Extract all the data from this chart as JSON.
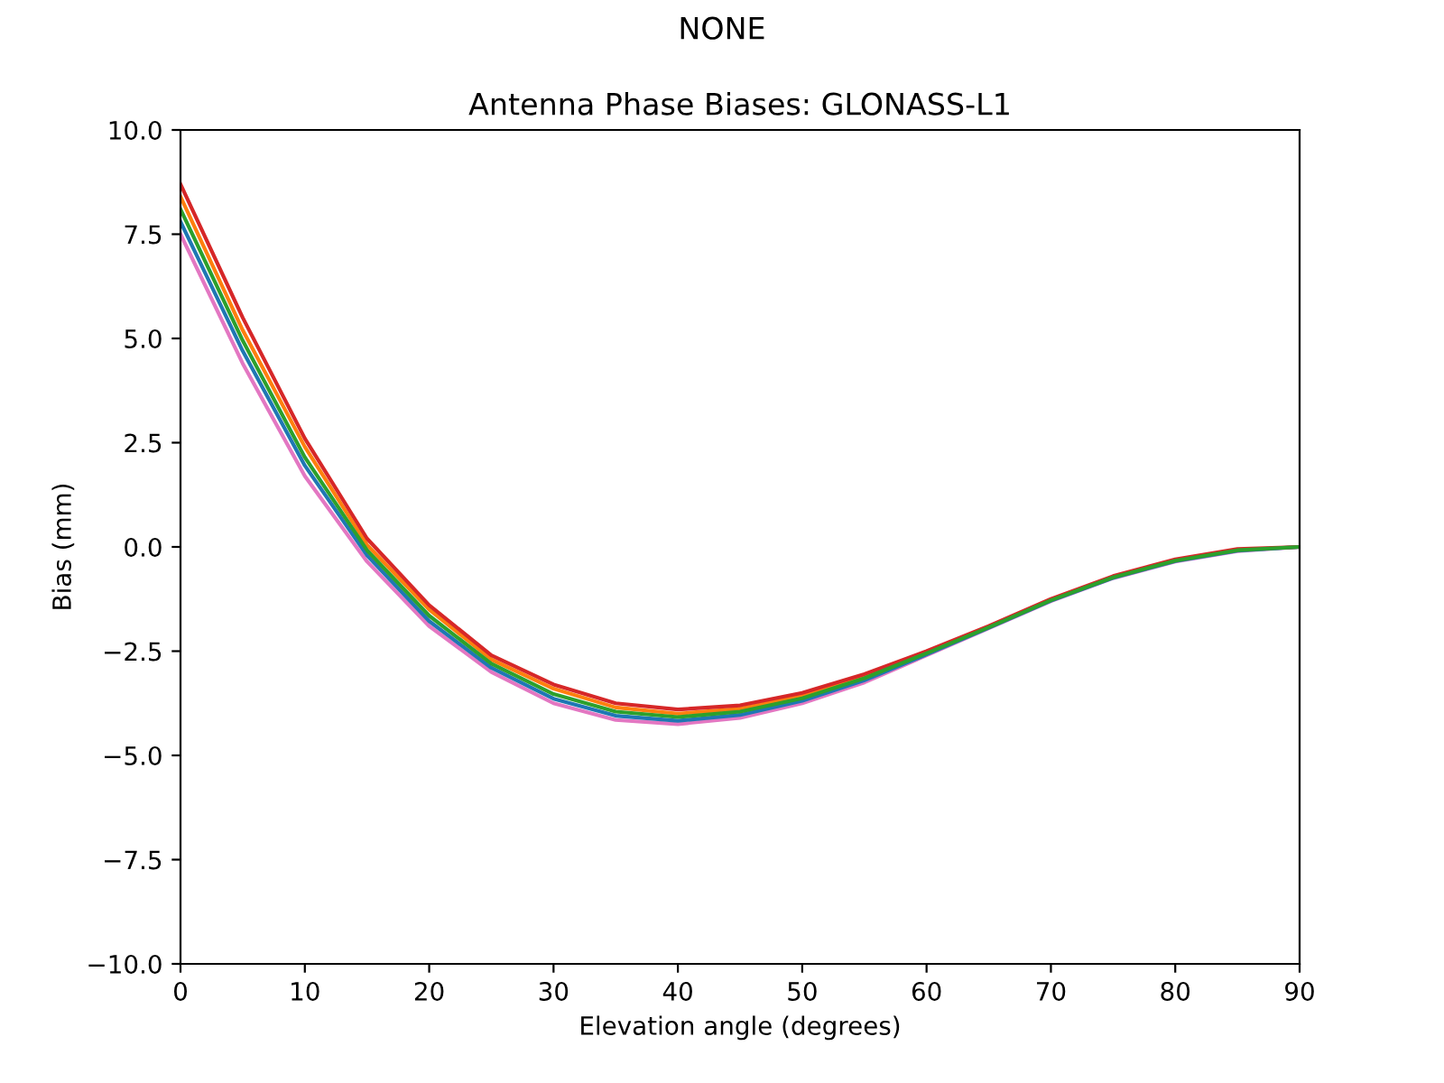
{
  "chart_data": {
    "type": "line",
    "title": "Antenna Phase Biases: GLONASS-L1",
    "subtitle": "NONE",
    "xlabel": "Elevation angle (degrees)",
    "ylabel": "Bias (mm)",
    "x": [
      0,
      5,
      10,
      15,
      20,
      25,
      30,
      35,
      40,
      45,
      50,
      55,
      60,
      65,
      70,
      75,
      80,
      85,
      90
    ],
    "series": [
      {
        "color": "#e377c2",
        "values": [
          7.5,
          4.4,
          1.7,
          -0.35,
          -1.9,
          -3.0,
          -3.75,
          -4.15,
          -4.25,
          -4.1,
          -3.75,
          -3.25,
          -2.6,
          -1.95,
          -1.3,
          -0.75,
          -0.35,
          -0.1,
          0
        ]
      },
      {
        "color": "#1f77b4",
        "values": [
          7.8,
          4.7,
          1.95,
          -0.2,
          -1.78,
          -2.9,
          -3.64,
          -4.05,
          -4.17,
          -4.03,
          -3.69,
          -3.2,
          -2.58,
          -1.94,
          -1.29,
          -0.74,
          -0.34,
          -0.09,
          0
        ]
      },
      {
        "color": "#ff7f0e",
        "values": [
          8.4,
          5.2,
          2.4,
          0.05,
          -1.5,
          -2.7,
          -3.4,
          -3.85,
          -4.0,
          -3.88,
          -3.57,
          -3.1,
          -2.53,
          null,
          null,
          null,
          null,
          null,
          null
        ]
      },
      {
        "color": "#d62728",
        "values": [
          8.7,
          5.5,
          2.6,
          0.2,
          -1.4,
          -2.6,
          -3.3,
          -3.75,
          -3.9,
          -3.8,
          -3.5,
          -3.05,
          -2.5,
          -1.9,
          -1.25,
          -0.7,
          -0.3,
          -0.05,
          0
        ]
      },
      {
        "color": "#2ca02c",
        "values": [
          8.1,
          4.95,
          2.15,
          -0.08,
          -1.65,
          -2.8,
          -3.53,
          -3.95,
          -4.08,
          -3.95,
          -3.63,
          -3.15,
          -2.55,
          -1.93,
          -1.28,
          -0.73,
          -0.33,
          -0.08,
          0
        ]
      }
    ],
    "xlim": [
      0,
      90
    ],
    "xticks": [
      0,
      10,
      20,
      30,
      40,
      50,
      60,
      70,
      80,
      90
    ],
    "ylim": [
      -10,
      10
    ],
    "yticks": [
      {
        "value": -10,
        "label": "−10.0"
      },
      {
        "value": -7.5,
        "label": "−7.5"
      },
      {
        "value": -5,
        "label": "−5.0"
      },
      {
        "value": -2.5,
        "label": "−2.5"
      },
      {
        "value": 0,
        "label": "0.0"
      },
      {
        "value": 2.5,
        "label": "2.5"
      },
      {
        "value": 5,
        "label": "5.0"
      },
      {
        "value": 7.5,
        "label": "7.5"
      },
      {
        "value": 10,
        "label": "10.0"
      }
    ],
    "grid": false,
    "legend": false,
    "marker": "none",
    "line_style": "solid"
  }
}
